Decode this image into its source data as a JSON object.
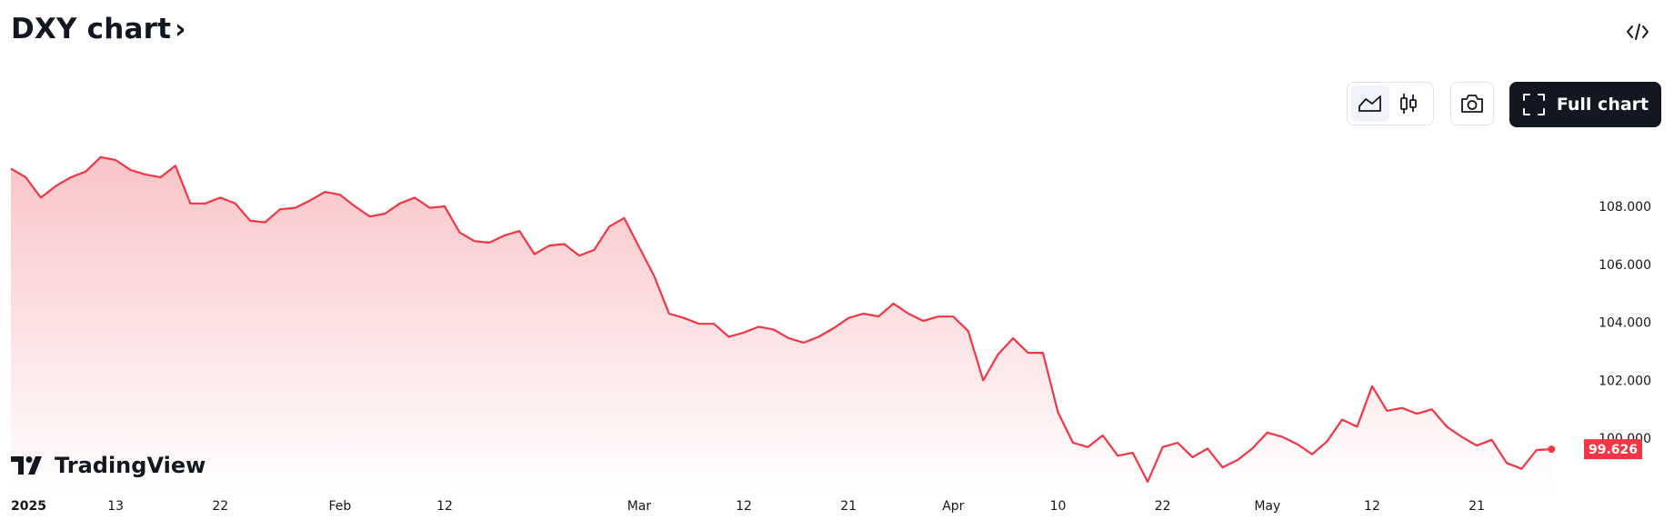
{
  "header": {
    "title": "DXY chart",
    "title_chevron": "›"
  },
  "toolbar": {
    "full_chart_label": "Full chart"
  },
  "icons": {
    "embed": "code-icon",
    "area_chart": "area-chart-icon",
    "candles": "candlestick-icon",
    "camera": "camera-icon",
    "fullscreen": "fullscreen-icon"
  },
  "branding": {
    "logo_text": "TradingView"
  },
  "colors": {
    "line": "#f23645",
    "area_top": "#f9c4c8",
    "area_bottom": "#ffffff",
    "badge": "#f23645",
    "text": "#131722",
    "axis_text": "#131722"
  },
  "chart_data": {
    "type": "area",
    "symbol": "DXY",
    "last_value": "99.626",
    "ylim": [
      98.3,
      109.8
    ],
    "y_ticks": [
      "108.000",
      "106.000",
      "104.000",
      "102.000",
      "100.000"
    ],
    "y_tick_values": [
      108,
      106,
      104,
      102,
      100
    ],
    "x_ticks": [
      {
        "label": "2025",
        "index": 0,
        "bold": true
      },
      {
        "label": "13",
        "index": 7
      },
      {
        "label": "22",
        "index": 14
      },
      {
        "label": "Feb",
        "index": 22
      },
      {
        "label": "12",
        "index": 29
      },
      {
        "label": "Mar",
        "index": 42
      },
      {
        "label": "12",
        "index": 49
      },
      {
        "label": "21",
        "index": 56
      },
      {
        "label": "Apr",
        "index": 63
      },
      {
        "label": "10",
        "index": 70
      },
      {
        "label": "22",
        "index": 77
      },
      {
        "label": "May",
        "index": 84
      },
      {
        "label": "12",
        "index": 91
      },
      {
        "label": "21",
        "index": 98
      }
    ],
    "values": [
      109.3,
      109.0,
      108.3,
      108.7,
      109.0,
      109.2,
      109.7,
      109.6,
      109.25,
      109.1,
      109.0,
      109.4,
      108.1,
      108.1,
      108.3,
      108.1,
      107.5,
      107.45,
      107.9,
      107.95,
      108.2,
      108.5,
      108.4,
      108.0,
      107.65,
      107.75,
      108.1,
      108.3,
      107.95,
      108.0,
      107.1,
      106.8,
      106.75,
      107.0,
      107.15,
      106.35,
      106.65,
      106.7,
      106.3,
      106.5,
      107.3,
      107.6,
      106.6,
      105.6,
      104.3,
      104.15,
      103.95,
      103.95,
      103.5,
      103.65,
      103.85,
      103.75,
      103.45,
      103.3,
      103.5,
      103.8,
      104.15,
      104.3,
      104.2,
      104.65,
      104.3,
      104.05,
      104.2,
      104.2,
      103.7,
      102.0,
      102.9,
      103.45,
      102.95,
      102.95,
      100.9,
      99.85,
      99.7,
      100.1,
      99.4,
      99.5,
      98.5,
      99.7,
      99.85,
      99.35,
      99.65,
      99.0,
      99.25,
      99.65,
      100.2,
      100.05,
      99.8,
      99.45,
      99.9,
      100.65,
      100.4,
      101.8,
      100.95,
      101.05,
      100.85,
      101.0,
      100.4,
      100.05,
      99.75,
      99.95,
      99.15,
      98.95,
      99.6,
      99.626
    ]
  }
}
